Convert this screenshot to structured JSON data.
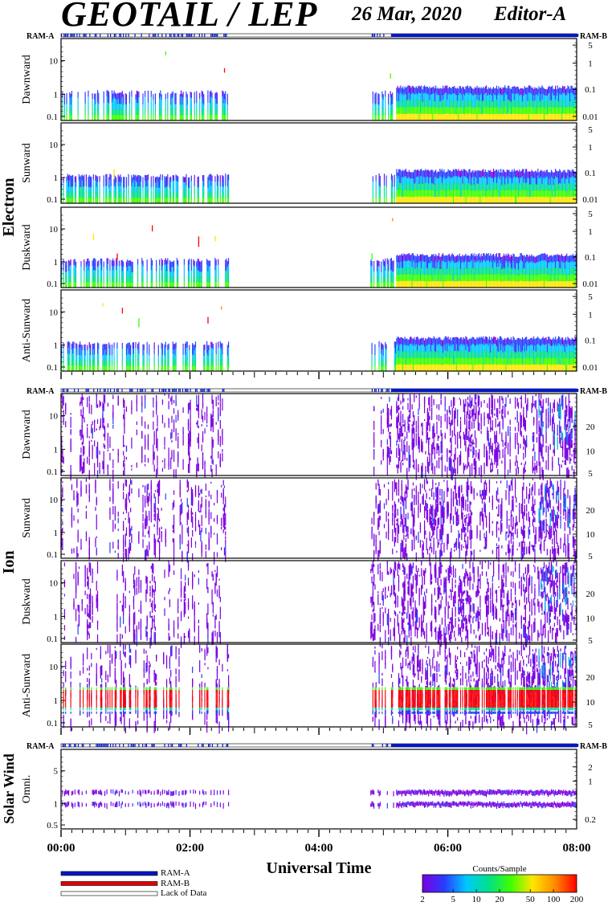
{
  "header": {
    "title": "GEOTAIL / LEP",
    "date": "26 Mar, 2020",
    "editor": "Editor-A"
  },
  "ram_labels": {
    "left": "RAM-A",
    "right": "RAM-B"
  },
  "chart_data": {
    "type": "heatmap",
    "x_axis": {
      "label": "Universal Time",
      "ticks": [
        "00:00",
        "02:00",
        "04:00",
        "06:00",
        "08:00"
      ],
      "range_hours": [
        0,
        8
      ]
    },
    "groups": [
      {
        "name": "Electron",
        "panels": [
          {
            "label": "Dawnward",
            "left_ticks": [
              "10",
              "1",
              "0.1"
            ],
            "right_ticks": [
              "5",
              "1",
              "0.1",
              "0.01"
            ]
          },
          {
            "label": "Sunward",
            "left_ticks": [
              "10",
              "1",
              "0.1"
            ],
            "right_ticks": [
              "5",
              "1",
              "0.1",
              "0.01"
            ]
          },
          {
            "label": "Duskward",
            "left_ticks": [
              "10",
              "1",
              "0.1"
            ],
            "right_ticks": [
              "5",
              "1",
              "0.1",
              "0.01"
            ]
          },
          {
            "label": "Anti-Sunward",
            "left_ticks": [
              "10",
              "1",
              "0.1"
            ],
            "right_ticks": [
              "5",
              "1",
              "0.1",
              "0.01"
            ]
          }
        ]
      },
      {
        "name": "Ion",
        "panels": [
          {
            "label": "Dawnward",
            "left_ticks": [
              "10",
              "1",
              "0.1"
            ],
            "right_ticks": [
              "20",
              "10",
              "5"
            ]
          },
          {
            "label": "Sunward",
            "left_ticks": [
              "10",
              "1",
              "0.1"
            ],
            "right_ticks": [
              "20",
              "10",
              "5"
            ]
          },
          {
            "label": "Duskward",
            "left_ticks": [
              "10",
              "1",
              "0.1"
            ],
            "right_ticks": [
              "20",
              "10",
              "5"
            ]
          },
          {
            "label": "Anti-Sunward",
            "left_ticks": [
              "10",
              "1",
              "0.1"
            ],
            "right_ticks": [
              "20",
              "10",
              "5"
            ]
          }
        ]
      },
      {
        "name": "Solar Wind",
        "panels": [
          {
            "label": "Omni.",
            "left_ticks": [
              "5",
              "1",
              "0.5"
            ],
            "right_ticks": [
              "2",
              "1",
              "0.2"
            ]
          }
        ]
      }
    ],
    "data_coverage_hours": [
      [
        0.0,
        2.6
      ],
      [
        4.8,
        8.0
      ]
    ],
    "data_gap_hours": [
      2.6,
      4.8
    ],
    "colorbar": {
      "title": "Counts/Sample",
      "ticks": [
        "2",
        "5",
        "10",
        "20",
        "50",
        "100",
        "200"
      ],
      "range": [
        2,
        200
      ],
      "scale": "log",
      "colors": [
        "#7a00e0",
        "#2a3cff",
        "#00c8ff",
        "#00e08a",
        "#3cff00",
        "#ffe600",
        "#ff8c00",
        "#ff0000"
      ]
    },
    "legend": [
      {
        "label": "RAM-A",
        "color": "#0018c8"
      },
      {
        "label": "RAM-B",
        "color": "#e00000"
      },
      {
        "label": "Lack of Data",
        "color": "#ffffff"
      }
    ]
  }
}
